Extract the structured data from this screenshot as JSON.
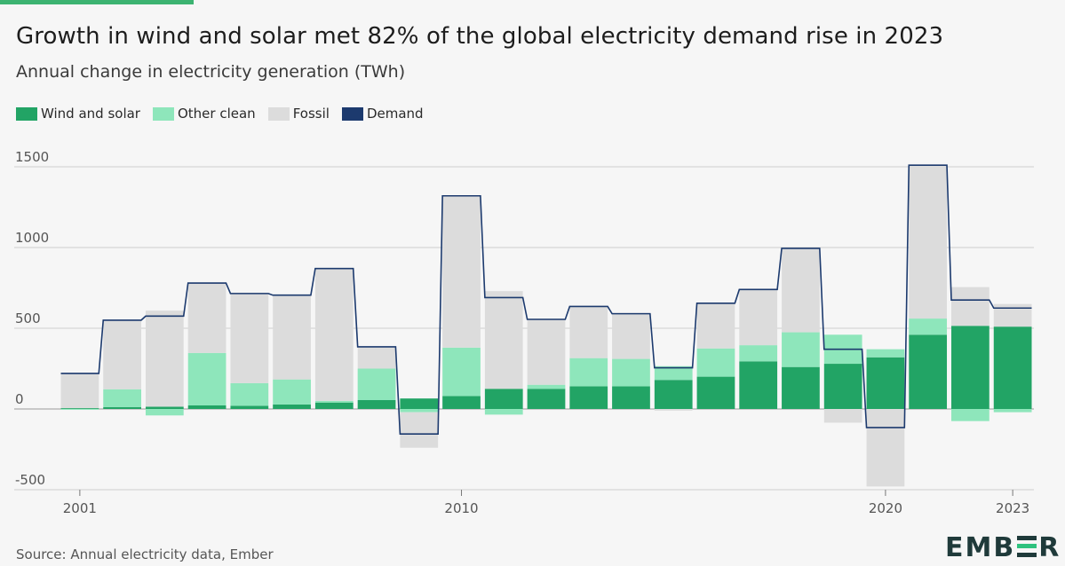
{
  "title": "Growth in wind and solar met 82% of the global electricity demand rise in 2023",
  "subtitle": "Annual change in electricity generation (TWh)",
  "legend": [
    {
      "label": "Wind and solar",
      "color": "#22a465"
    },
    {
      "label": "Other clean",
      "color": "#8ee6bb"
    },
    {
      "label": "Fossil",
      "color": "#dcdcdc"
    },
    {
      "label": "Demand",
      "color": "#1c3a6e"
    }
  ],
  "source": "Source: Annual electricity data, Ember",
  "logo": {
    "left": "EMB",
    "right": "R"
  },
  "chart_data": {
    "type": "bar",
    "stacked": true,
    "categories": [
      "2001",
      "2002",
      "2003",
      "2004",
      "2005",
      "2006",
      "2007",
      "2008",
      "2009",
      "2010",
      "2011",
      "2012",
      "2013",
      "2014",
      "2015",
      "2016",
      "2017",
      "2018",
      "2019",
      "2020",
      "2021",
      "2022",
      "2023"
    ],
    "series": [
      {
        "name": "Wind and solar",
        "color": "#22a465",
        "values": [
          5,
          12,
          14,
          22,
          20,
          28,
          40,
          55,
          65,
          80,
          125,
          125,
          140,
          140,
          180,
          200,
          295,
          260,
          280,
          320,
          460,
          515,
          510
        ]
      },
      {
        "name": "Other clean",
        "color": "#8ee6bb",
        "values": [
          -5,
          110,
          -40,
          325,
          140,
          155,
          10,
          195,
          -20,
          300,
          -35,
          25,
          175,
          170,
          85,
          175,
          100,
          215,
          180,
          50,
          100,
          -75,
          -20
        ]
      },
      {
        "name": "Fossil",
        "color": "#dcdcdc",
        "values": [
          220,
          430,
          595,
          435,
          560,
          525,
          820,
          135,
          -220,
          940,
          605,
          410,
          320,
          285,
          -10,
          280,
          345,
          520,
          -85,
          -480,
          950,
          240,
          140
        ]
      },
      {
        "name": "Demand",
        "color": "#1c3a6e",
        "type": "step",
        "values": [
          220,
          550,
          575,
          780,
          715,
          705,
          870,
          385,
          -155,
          1320,
          690,
          555,
          635,
          590,
          255,
          655,
          740,
          995,
          370,
          -115,
          1510,
          675,
          625
        ]
      }
    ],
    "y_ticks": [
      1500,
      1000,
      500,
      0,
      -500
    ],
    "x_tick_labels": [
      "2001",
      "2010",
      "2020",
      "2023"
    ],
    "ylim": [
      -500,
      1500
    ],
    "grid": true,
    "legend_position": "top-left"
  }
}
